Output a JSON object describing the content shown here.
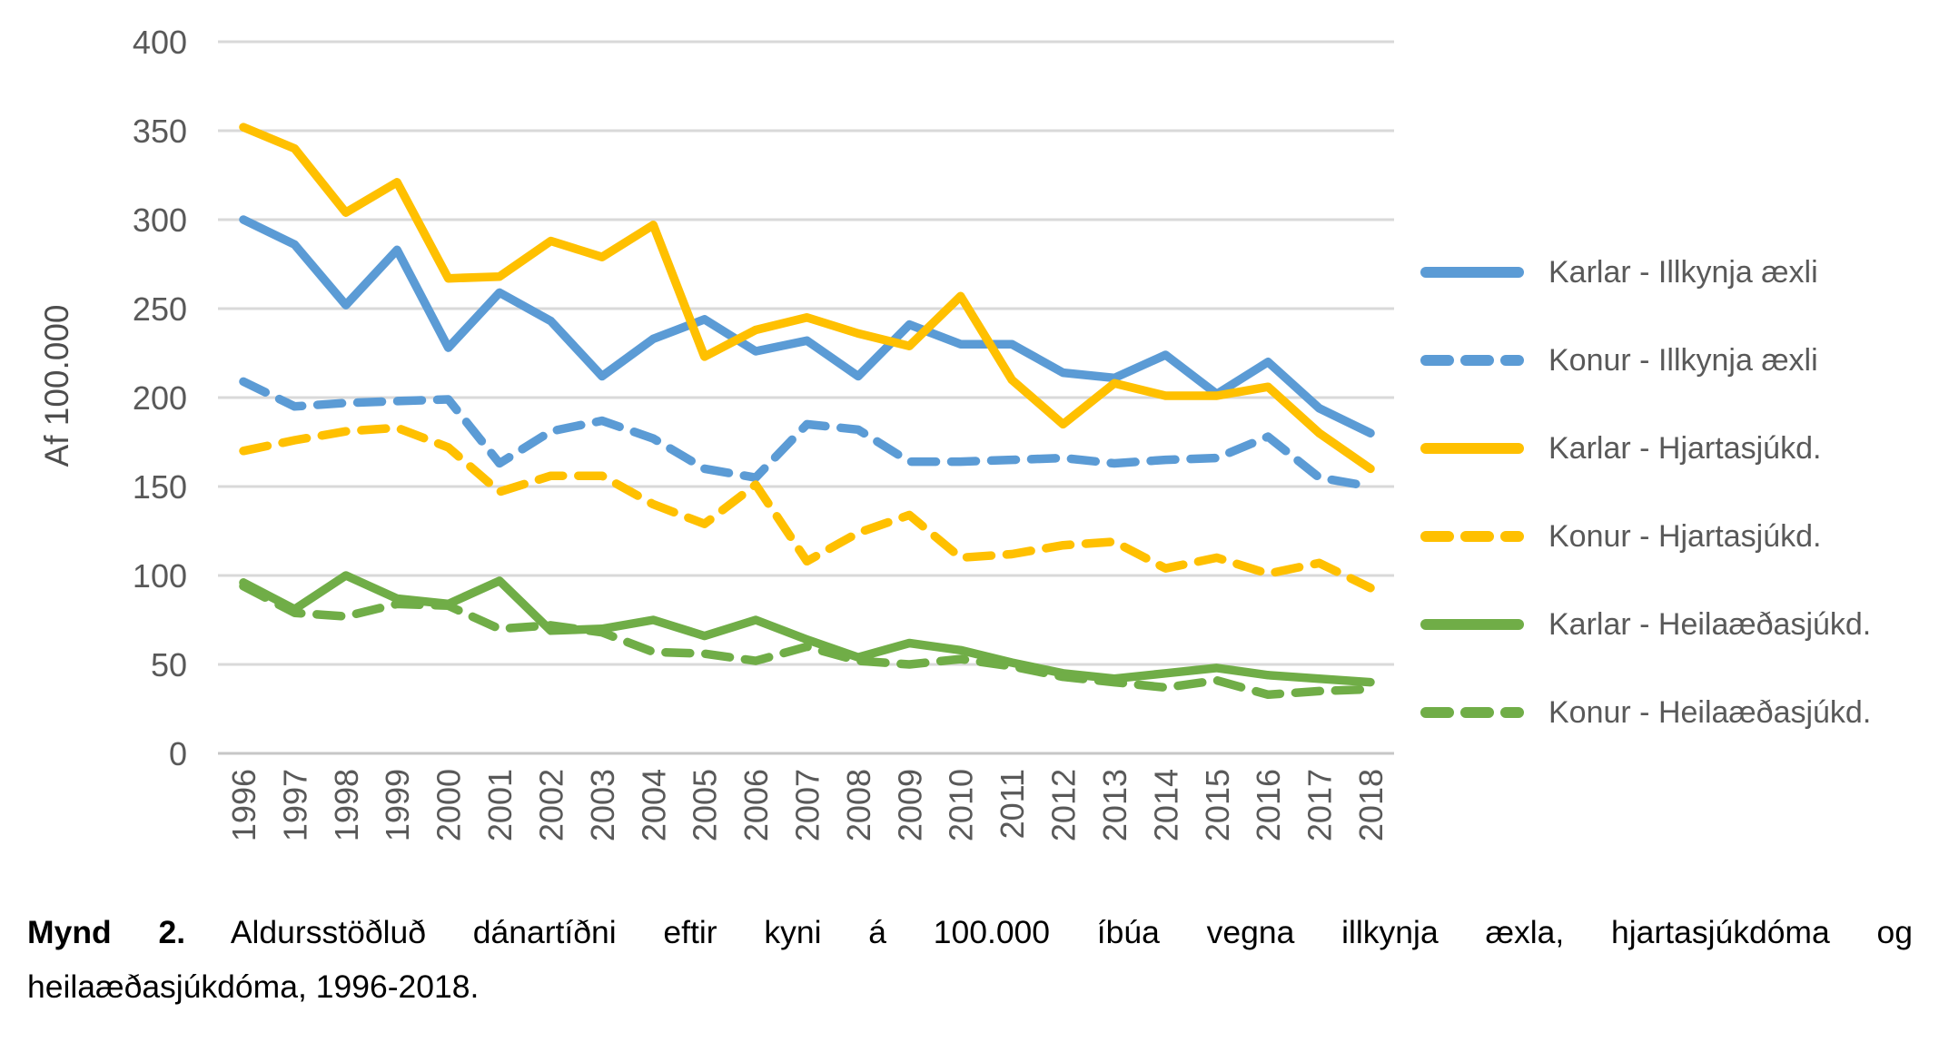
{
  "figure": {
    "caption": {
      "prefix": "Mynd 2.",
      "line1": " Aldursstöðluð dánartíðni eftir kyni á 100.000 íbúa vegna illkynja æxla, hjartasjúkdóma og",
      "line2": "heilaæðasjúkdóma, 1996-2018."
    }
  },
  "chart_data": {
    "type": "line",
    "title": "",
    "xlabel": "",
    "ylabel": "Af 100.000",
    "grid": true,
    "legend_position": "right",
    "x": [
      1996,
      1997,
      1998,
      1999,
      2000,
      2001,
      2002,
      2003,
      2004,
      2005,
      2006,
      2007,
      2008,
      2009,
      2010,
      2011,
      2012,
      2013,
      2014,
      2015,
      2016,
      2017,
      2018
    ],
    "yaxis": {
      "min": 0,
      "max": 400,
      "step": 50
    },
    "series": [
      {
        "name": "Karlar - Illkynja æxli",
        "color": "#5B9BD5",
        "dash": false,
        "values": [
          300,
          286,
          252,
          283,
          228,
          259,
          243,
          212,
          233,
          244,
          226,
          232,
          212,
          241,
          230,
          230,
          214,
          211,
          224,
          202,
          220,
          194,
          180
        ]
      },
      {
        "name": "Konur - Illkynja æxli",
        "color": "#5B9BD5",
        "dash": true,
        "values": [
          209,
          195,
          197,
          198,
          199,
          163,
          181,
          187,
          177,
          160,
          155,
          185,
          182,
          164,
          164,
          165,
          166,
          163,
          165,
          166,
          178,
          155,
          150
        ]
      },
      {
        "name": "Karlar - Hjartasjúkd.",
        "color": "#FFC000",
        "dash": false,
        "values": [
          352,
          340,
          304,
          321,
          267,
          268,
          288,
          279,
          297,
          223,
          238,
          245,
          236,
          229,
          257,
          210,
          185,
          208,
          201,
          201,
          206,
          180,
          160
        ]
      },
      {
        "name": "Konur - Hjartasjúkd.",
        "color": "#FFC000",
        "dash": true,
        "values": [
          170,
          176,
          181,
          183,
          172,
          147,
          156,
          156,
          140,
          129,
          151,
          108,
          124,
          134,
          110,
          112,
          117,
          119,
          104,
          110,
          101,
          107,
          93
        ]
      },
      {
        "name": "Karlar - Heilaæðasjúkd.",
        "color": "#70AD47",
        "dash": false,
        "values": [
          96,
          81,
          100,
          87,
          84,
          97,
          69,
          70,
          75,
          66,
          75,
          64,
          54,
          62,
          58,
          51,
          45,
          42,
          45,
          48,
          44,
          42,
          40
        ]
      },
      {
        "name": "Konur - Heilaæðasjúkd.",
        "color": "#70AD47",
        "dash": true,
        "values": [
          94,
          79,
          77,
          84,
          83,
          70,
          72,
          68,
          57,
          56,
          52,
          60,
          52,
          50,
          53,
          49,
          43,
          40,
          37,
          41,
          33,
          35,
          36
        ]
      }
    ],
    "colors": {
      "grid": "#D9D9D9",
      "axis_line": "#C6C6C6",
      "tick_text": "#595959"
    }
  }
}
